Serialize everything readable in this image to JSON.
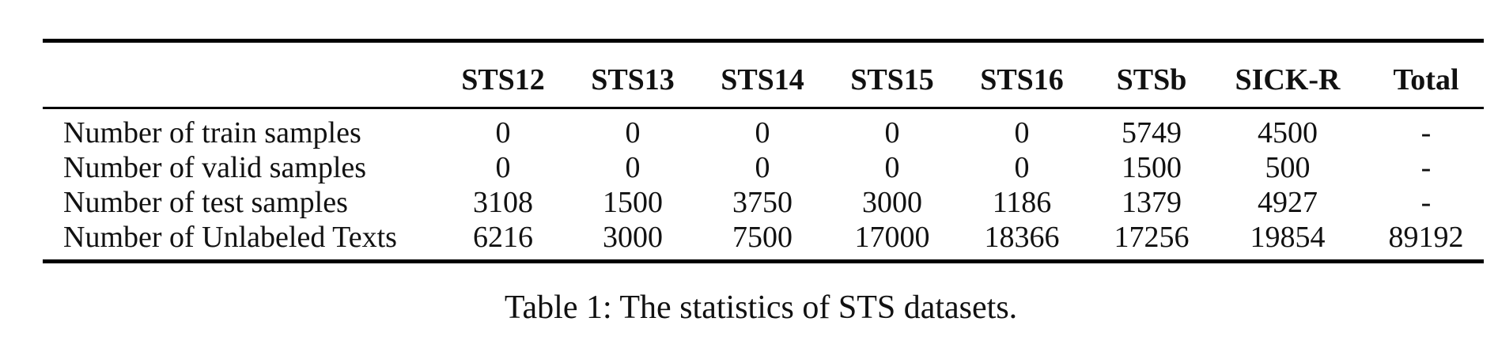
{
  "table": {
    "columns": [
      "STS12",
      "STS13",
      "STS14",
      "STS15",
      "STS16",
      "STSb",
      "SICK-R",
      "Total"
    ],
    "rows": [
      {
        "label": "Number of train samples",
        "cells": [
          "0",
          "0",
          "0",
          "0",
          "0",
          "5749",
          "4500",
          "-"
        ]
      },
      {
        "label": "Number of valid samples",
        "cells": [
          "0",
          "0",
          "0",
          "0",
          "0",
          "1500",
          "500",
          "-"
        ]
      },
      {
        "label": "Number of test samples",
        "cells": [
          "3108",
          "1500",
          "3750",
          "3000",
          "1186",
          "1379",
          "4927",
          "-"
        ]
      },
      {
        "label": "Number of Unlabeled Texts",
        "cells": [
          "6216",
          "3000",
          "7500",
          "17000",
          "18366",
          "17256",
          "19854",
          "89192"
        ]
      }
    ]
  },
  "caption": "Table 1: The statistics of STS datasets."
}
